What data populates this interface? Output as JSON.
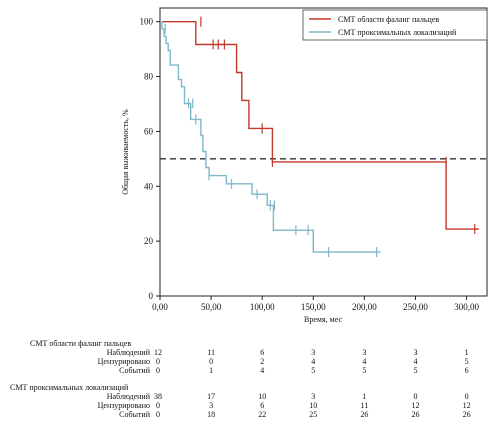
{
  "chart_data": {
    "type": "line",
    "title": "",
    "xlabel": "Время, мес",
    "ylabel": "Общая выживаемость, %",
    "xlim": [
      0,
      320
    ],
    "ylim": [
      0,
      105
    ],
    "x_ticks": [
      "0,00",
      "50,00",
      "100,00",
      "150,00",
      "200,00",
      "250,00",
      "300,00"
    ],
    "y_ticks": [
      "0",
      "20",
      "40",
      "60",
      "80",
      "100"
    ],
    "legend_position": "top-right",
    "reference_line": {
      "y": 50,
      "style": "dashed",
      "color": "#333333"
    },
    "series": [
      {
        "name": "СМТ области фаланг пальцев",
        "color": "#c0392b",
        "steps": [
          [
            0,
            100
          ],
          [
            35,
            100
          ],
          [
            35,
            91.7
          ],
          [
            75,
            91.7
          ],
          [
            75,
            81.5
          ],
          [
            80,
            81.5
          ],
          [
            80,
            71.3
          ],
          [
            87,
            71.3
          ],
          [
            87,
            61.1
          ],
          [
            110,
            61.1
          ],
          [
            110,
            48.9
          ],
          [
            280,
            48.9
          ],
          [
            280,
            24.4
          ],
          [
            312,
            24.4
          ]
        ],
        "censored": [
          [
            40,
            100
          ],
          [
            52,
            91.7
          ],
          [
            57,
            91.7
          ],
          [
            63,
            91.7
          ],
          [
            100,
            61.1
          ],
          [
            110,
            48.9
          ],
          [
            280,
            48.9
          ],
          [
            308,
            24.4
          ]
        ]
      },
      {
        "name": "СМТ проксимальных локализаций",
        "color": "#7fb8c9",
        "steps": [
          [
            0,
            100
          ],
          [
            2,
            100
          ],
          [
            2,
            97.4
          ],
          [
            4,
            97.4
          ],
          [
            4,
            94.7
          ],
          [
            6,
            94.7
          ],
          [
            6,
            92.1
          ],
          [
            8,
            92.1
          ],
          [
            8,
            89.5
          ],
          [
            10,
            89.5
          ],
          [
            10,
            84.2
          ],
          [
            18,
            84.2
          ],
          [
            18,
            78.9
          ],
          [
            21,
            78.9
          ],
          [
            21,
            76.3
          ],
          [
            24,
            76.3
          ],
          [
            24,
            70.2
          ],
          [
            30,
            70.2
          ],
          [
            30,
            64.4
          ],
          [
            40,
            64.4
          ],
          [
            40,
            58.5
          ],
          [
            42,
            58.5
          ],
          [
            42,
            52.7
          ],
          [
            45,
            52.7
          ],
          [
            45,
            46.8
          ],
          [
            48,
            46.8
          ],
          [
            48,
            43.9
          ],
          [
            65,
            43.9
          ],
          [
            65,
            40.9
          ],
          [
            90,
            40.9
          ],
          [
            90,
            37.1
          ],
          [
            105,
            37.1
          ],
          [
            105,
            33.1
          ],
          [
            111,
            33.1
          ],
          [
            111,
            24
          ],
          [
            150,
            24
          ],
          [
            150,
            16
          ],
          [
            216,
            16
          ]
        ],
        "censored": [
          [
            5,
            97.4
          ],
          [
            28,
            70.2
          ],
          [
            32,
            70.2
          ],
          [
            35,
            64.4
          ],
          [
            48,
            43.9
          ],
          [
            70,
            40.9
          ],
          [
            95,
            37.1
          ],
          [
            108,
            33.1
          ],
          [
            112,
            33.1
          ],
          [
            133,
            24
          ],
          [
            145,
            24
          ],
          [
            165,
            16
          ],
          [
            212,
            16
          ]
        ]
      }
    ]
  },
  "risk_table": {
    "group1": {
      "title": "СМТ области фаланг пальцев",
      "rows": [
        {
          "label": "Наблюдений",
          "values": [
            "12",
            "11",
            "6",
            "3",
            "3",
            "3",
            "1"
          ]
        },
        {
          "label": "Цензурировано",
          "values": [
            "0",
            "0",
            "2",
            "4",
            "4",
            "4",
            "5"
          ]
        },
        {
          "label": "Событий",
          "values": [
            "0",
            "1",
            "4",
            "5",
            "5",
            "5",
            "6"
          ]
        }
      ]
    },
    "group2": {
      "title": "СМТ проксимальных локализаций",
      "rows": [
        {
          "label": "Наблюдений",
          "values": [
            "38",
            "17",
            "10",
            "3",
            "1",
            "0",
            "0"
          ]
        },
        {
          "label": "Цензурировано",
          "values": [
            "0",
            "3",
            "6",
            "10",
            "11",
            "12",
            "12"
          ]
        },
        {
          "label": "Событий",
          "values": [
            "0",
            "18",
            "22",
            "25",
            "26",
            "26",
            "26"
          ]
        }
      ]
    }
  }
}
